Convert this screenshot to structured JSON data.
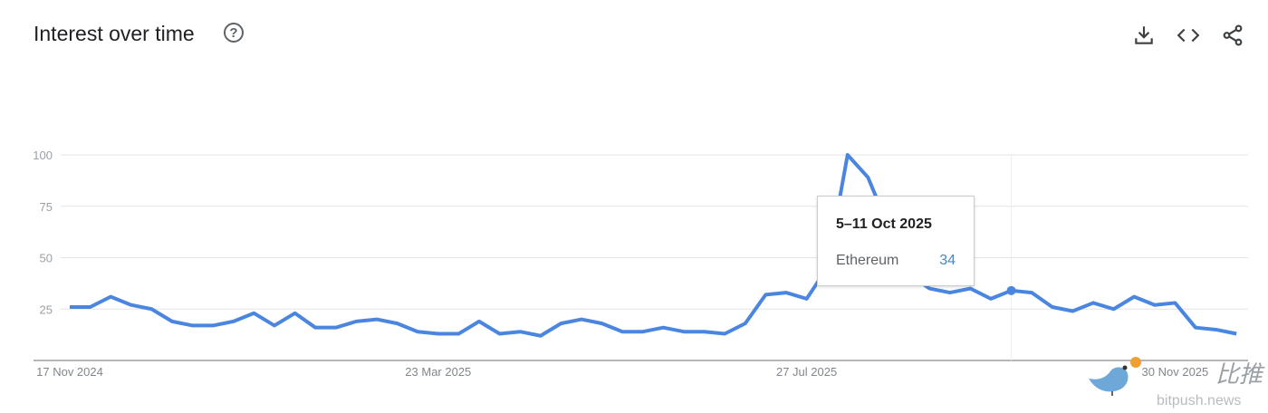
{
  "header": {
    "title": "Interest over time",
    "help_icon": "question-circle-icon",
    "actions": [
      {
        "name": "download-icon"
      },
      {
        "name": "embed-code-icon"
      },
      {
        "name": "share-icon"
      }
    ]
  },
  "tooltip": {
    "date": "5–11 Oct 2025",
    "series_name": "Ethereum",
    "value": "34"
  },
  "watermark": {
    "text": "bitpush.news",
    "chinese": "比推"
  },
  "chart_data": {
    "type": "line",
    "title": "Interest over time",
    "ylim": [
      0,
      100
    ],
    "y_ticks": [
      "25",
      "50",
      "75",
      "100"
    ],
    "x_tick_labels": [
      "17 Nov 2024",
      "23 Mar 2025",
      "27 Jul 2025",
      "30 Nov 2025"
    ],
    "x_tick_indices": [
      0,
      18,
      36,
      54
    ],
    "grid": true,
    "color": "#4a86e0",
    "highlight_index": 46,
    "series": [
      {
        "name": "Ethereum",
        "values": [
          26,
          26,
          31,
          27,
          25,
          19,
          17,
          17,
          19,
          23,
          17,
          23,
          16,
          16,
          19,
          20,
          18,
          14,
          13,
          13,
          19,
          13,
          14,
          12,
          18,
          20,
          18,
          14,
          14,
          16,
          14,
          14,
          13,
          18,
          32,
          33,
          30,
          45,
          100,
          89,
          65,
          42,
          35,
          33,
          35,
          30,
          34,
          33,
          26,
          24,
          28,
          25,
          31,
          27,
          28,
          16,
          15,
          13
        ]
      }
    ]
  }
}
